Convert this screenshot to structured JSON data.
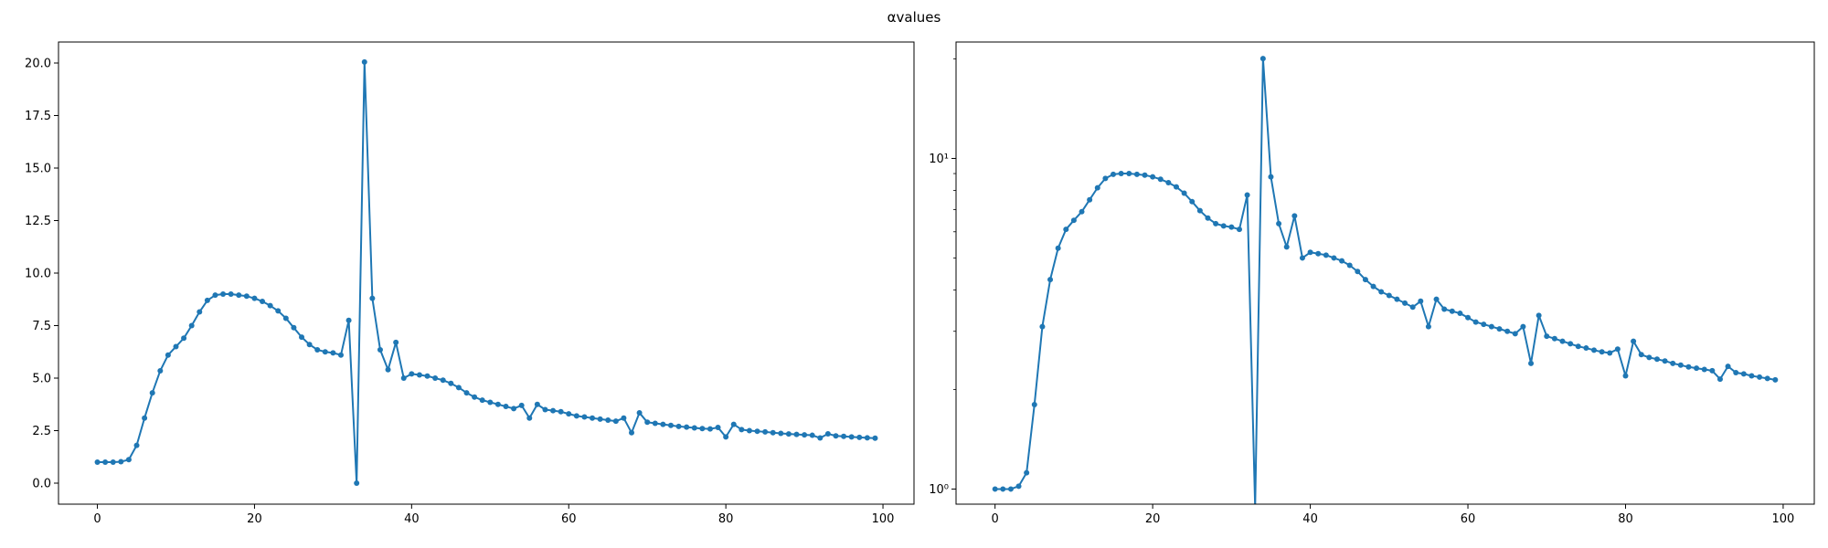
{
  "suptitle": "αvalues",
  "chart_data": [
    {
      "type": "line",
      "yscale": "linear",
      "title": "",
      "xlabel": "",
      "ylabel": "",
      "xlim": [
        -4.95,
        103.95
      ],
      "ylim": [
        -1.0,
        21.0
      ],
      "xticks": [
        0,
        20,
        40,
        60,
        80,
        100
      ],
      "yticks": [
        0.0,
        2.5,
        5.0,
        7.5,
        10.0,
        12.5,
        15.0,
        17.5,
        20.0
      ],
      "ytick_labels": [
        "0.0",
        "2.5",
        "5.0",
        "7.5",
        "10.0",
        "12.5",
        "15.0",
        "17.5",
        "20.0"
      ],
      "grid": false,
      "legend": "none",
      "color": "#1f77b4",
      "marker": "circle",
      "series": [
        {
          "x": [
            0,
            1,
            2,
            3,
            4,
            5,
            6,
            7,
            8,
            9,
            10,
            11,
            12,
            13,
            14,
            15,
            16,
            17,
            18,
            19,
            20,
            21,
            22,
            23,
            24,
            25,
            26,
            27,
            28,
            29,
            30,
            31,
            32,
            33,
            34,
            35,
            36,
            37,
            38,
            39,
            40,
            41,
            42,
            43,
            44,
            45,
            46,
            47,
            48,
            49,
            50,
            51,
            52,
            53,
            54,
            55,
            56,
            57,
            58,
            59,
            60,
            61,
            62,
            63,
            64,
            65,
            66,
            67,
            68,
            69,
            70,
            71,
            72,
            73,
            74,
            75,
            76,
            77,
            78,
            79,
            80,
            81,
            82,
            83,
            84,
            85,
            86,
            87,
            88,
            89,
            90,
            91,
            92,
            93,
            94,
            95,
            96,
            97,
            98,
            99
          ],
          "y": [
            1.0,
            1.0,
            1.0,
            1.02,
            1.12,
            1.8,
            3.1,
            4.3,
            5.35,
            6.1,
            6.5,
            6.9,
            7.5,
            8.15,
            8.7,
            8.95,
            9.0,
            9.0,
            8.95,
            8.9,
            8.8,
            8.65,
            8.45,
            8.2,
            7.85,
            7.4,
            6.95,
            6.6,
            6.35,
            6.25,
            6.2,
            6.1,
            7.75,
            0.0,
            20.05,
            8.8,
            6.35,
            5.4,
            6.7,
            5.0,
            5.2,
            5.15,
            5.1,
            5.0,
            4.9,
            4.75,
            4.55,
            4.3,
            4.1,
            3.95,
            3.85,
            3.75,
            3.65,
            3.55,
            3.7,
            3.1,
            3.75,
            3.5,
            3.45,
            3.4,
            3.3,
            3.2,
            3.15,
            3.1,
            3.05,
            3.0,
            2.95,
            3.1,
            2.4,
            3.35,
            2.9,
            2.85,
            2.8,
            2.75,
            2.7,
            2.67,
            2.63,
            2.6,
            2.58,
            2.65,
            2.2,
            2.8,
            2.55,
            2.5,
            2.47,
            2.44,
            2.4,
            2.37,
            2.34,
            2.32,
            2.3,
            2.28,
            2.15,
            2.35,
            2.25,
            2.23,
            2.2,
            2.18,
            2.16,
            2.14
          ]
        }
      ]
    },
    {
      "type": "line",
      "yscale": "log",
      "title": "",
      "xlabel": "",
      "ylabel": "",
      "xlim": [
        -4.95,
        103.95
      ],
      "ylim": [
        0.9,
        22.5
      ],
      "xticks": [
        0,
        20,
        40,
        60,
        80,
        100
      ],
      "yticks": [
        1,
        10
      ],
      "ytick_labels": [
        "10⁰",
        "10¹"
      ],
      "grid": false,
      "legend": "none",
      "color": "#1f77b4",
      "marker": "circle",
      "series": [
        {
          "x": [
            0,
            1,
            2,
            3,
            4,
            5,
            6,
            7,
            8,
            9,
            10,
            11,
            12,
            13,
            14,
            15,
            16,
            17,
            18,
            19,
            20,
            21,
            22,
            23,
            24,
            25,
            26,
            27,
            28,
            29,
            30,
            31,
            32,
            33,
            34,
            35,
            36,
            37,
            38,
            39,
            40,
            41,
            42,
            43,
            44,
            45,
            46,
            47,
            48,
            49,
            50,
            51,
            52,
            53,
            54,
            55,
            56,
            57,
            58,
            59,
            60,
            61,
            62,
            63,
            64,
            65,
            66,
            67,
            68,
            69,
            70,
            71,
            72,
            73,
            74,
            75,
            76,
            77,
            78,
            79,
            80,
            81,
            82,
            83,
            84,
            85,
            86,
            87,
            88,
            89,
            90,
            91,
            92,
            93,
            94,
            95,
            96,
            97,
            98,
            99
          ],
          "y": [
            1.0,
            1.0,
            1.0,
            1.02,
            1.12,
            1.8,
            3.1,
            4.3,
            5.35,
            6.1,
            6.5,
            6.9,
            7.5,
            8.15,
            8.7,
            8.95,
            9.0,
            9.0,
            8.95,
            8.9,
            8.8,
            8.65,
            8.45,
            8.2,
            7.85,
            7.4,
            6.95,
            6.6,
            6.35,
            6.25,
            6.2,
            6.1,
            7.75,
            0.0,
            20.05,
            8.8,
            6.35,
            5.4,
            6.7,
            5.0,
            5.2,
            5.15,
            5.1,
            5.0,
            4.9,
            4.75,
            4.55,
            4.3,
            4.1,
            3.95,
            3.85,
            3.75,
            3.65,
            3.55,
            3.7,
            3.1,
            3.75,
            3.5,
            3.45,
            3.4,
            3.3,
            3.2,
            3.15,
            3.1,
            3.05,
            3.0,
            2.95,
            3.1,
            2.4,
            3.35,
            2.9,
            2.85,
            2.8,
            2.75,
            2.7,
            2.67,
            2.63,
            2.6,
            2.58,
            2.65,
            2.2,
            2.8,
            2.55,
            2.5,
            2.47,
            2.44,
            2.4,
            2.37,
            2.34,
            2.32,
            2.3,
            2.28,
            2.15,
            2.35,
            2.25,
            2.23,
            2.2,
            2.18,
            2.16,
            2.14
          ]
        }
      ]
    }
  ]
}
